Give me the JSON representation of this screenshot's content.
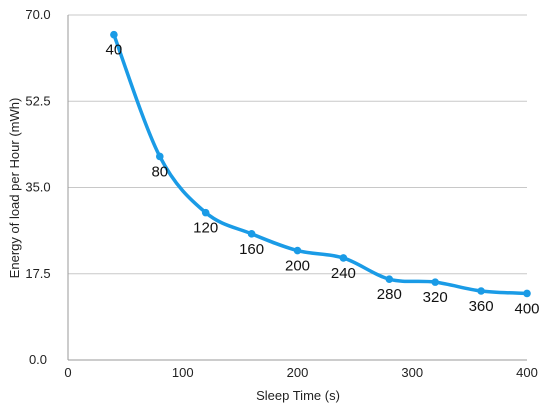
{
  "chart_data": {
    "type": "line",
    "title": "",
    "xlabel": "Sleep Time (s)",
    "ylabel": "Energy of load per Hour (mWh)",
    "xlim": [
      0,
      400
    ],
    "ylim": [
      0,
      70
    ],
    "x_ticks": [
      0,
      100,
      200,
      300,
      400
    ],
    "x_tick_labels": [
      "0",
      "100",
      "200",
      "300",
      "400"
    ],
    "y_ticks": [
      0,
      17.5,
      35,
      52.5,
      70
    ],
    "y_tick_labels": [
      "0.0",
      "17.5",
      "35.0",
      "52.5",
      "70.0"
    ],
    "grid": "horizontal",
    "legend": "none",
    "series": [
      {
        "color": "#1a9be6",
        "x": [
          40,
          80,
          120,
          160,
          200,
          240,
          280,
          320,
          360,
          400
        ],
        "y": [
          66.0,
          41.3,
          29.9,
          25.6,
          22.2,
          20.7,
          16.4,
          15.8,
          14.0,
          13.5
        ],
        "point_labels": [
          "40",
          "80",
          "120",
          "160",
          "200",
          "240",
          "280",
          "320",
          "360",
          "400"
        ]
      }
    ]
  }
}
